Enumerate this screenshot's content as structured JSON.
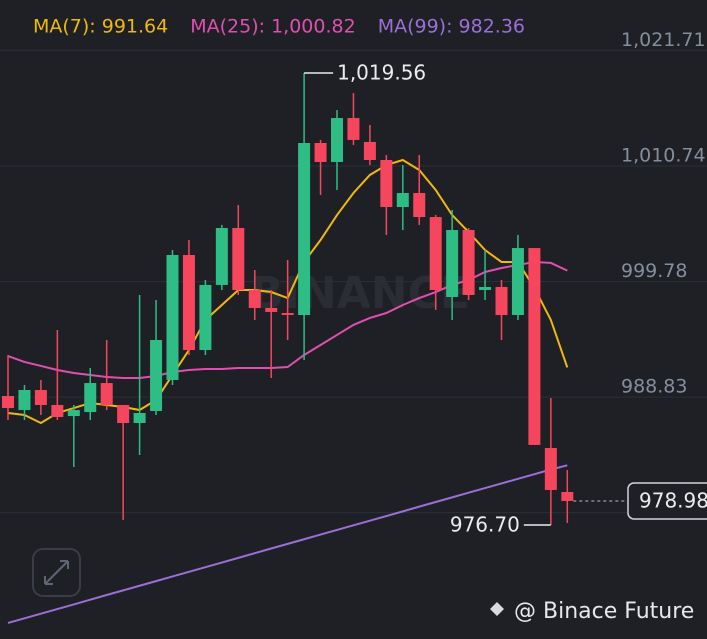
{
  "chart_data": {
    "type": "candlestick",
    "open": [
      988.93,
      987.6,
      989.5,
      988.08,
      987.03,
      987.41,
      990.16,
      988.08,
      986.37,
      987.51,
      990.45,
      1002.3,
      993.29,
      999.46,
      1004.86,
      998.98,
      997.28,
      996.8,
      996.61,
      1012.92,
      1011.12,
      1015.29,
      1013.02,
      1011.31,
      1006.85,
      1008.18,
      1005.9,
      998.32,
      1004.67,
      998.98,
      999.27,
      996.61,
      1002.96,
      984.0,
      979.83
    ],
    "high": [
      992.82,
      989.97,
      990.45,
      995.19,
      988.08,
      991.59,
      994.24,
      988.08,
      998.51,
      998.03,
      1002.77,
      1003.72,
      999.93,
      1005.15,
      1007.04,
      1000.88,
      998.98,
      1001.83,
      1019.56,
      1013.21,
      1016.05,
      1017.66,
      1014.63,
      1011.78,
      1010.83,
      1011.78,
      1006.1,
      1006.57,
      1004.86,
      1002.77,
      999.93,
      1004.2,
      1002.96,
      988.74,
      981.91
    ],
    "low": [
      986.66,
      986.66,
      987.13,
      986.66,
      982.2,
      986.66,
      987.6,
      977.17,
      983.34,
      987.13,
      989.97,
      992.82,
      992.82,
      998.98,
      998.51,
      996.14,
      990.64,
      994.24,
      992.34,
      1007.99,
      1008.46,
      1012.73,
      1010.83,
      1004.2,
      1004.67,
      1005.15,
      997.09,
      996.14,
      998.03,
      998.03,
      994.24,
      996.14,
      984.29,
      976.7,
      976.89
    ],
    "close": [
      987.79,
      989.5,
      988.08,
      986.94,
      987.6,
      990.16,
      988.08,
      986.37,
      987.32,
      994.24,
      1002.3,
      993.29,
      999.46,
      1004.86,
      998.98,
      997.28,
      996.9,
      996.61,
      1012.92,
      1011.12,
      1015.29,
      1013.21,
      1011.31,
      1006.85,
      1008.18,
      1005.9,
      998.98,
      1004.67,
      998.51,
      999.27,
      996.61,
      1002.96,
      984.29,
      980.02,
      978.98
    ],
    "up_color": "#2ebd85",
    "down_color": "#f6465d",
    "series": [
      {
        "label": "MA(7): 991.64",
        "color": "#f0b90b",
        "values": [
          987.32,
          987.13,
          986.37,
          987.32,
          987.79,
          988.27,
          988.08,
          987.89,
          987.6,
          988.55,
          990.92,
          993.29,
          996.14,
          997.56,
          998.98,
          998.98,
          998.79,
          998.22,
          1001.64,
          1003.72,
          1006.09,
          1008.18,
          1009.89,
          1010.83,
          1011.31,
          1010.36,
          1008.47,
          1006.09,
          1004.48,
          1002.77,
          1001.64,
          1001.64,
          999.17,
          996.14,
          991.64
        ]
      },
      {
        "label": "MA(25): 1,000.82",
        "color": "#e04fb0",
        "values": [
          992.72,
          992.16,
          991.78,
          991.4,
          991.11,
          990.92,
          990.73,
          990.64,
          990.64,
          990.83,
          991.21,
          991.4,
          991.49,
          991.49,
          991.59,
          991.59,
          991.59,
          991.68,
          992.82,
          993.77,
          994.72,
          995.67,
          996.33,
          996.8,
          997.56,
          998.22,
          998.79,
          999.46,
          999.93,
          1000.69,
          1001.07,
          1001.36,
          1001.64,
          1001.55,
          1000.82
        ]
      },
      {
        "label": "MA(99): 982.36",
        "color": "#9b6fd6",
        "values": [
          967.41,
          967.85,
          968.29,
          968.73,
          969.17,
          969.62,
          970.06,
          970.5,
          970.94,
          971.38,
          971.82,
          972.26,
          972.7,
          973.14,
          973.58,
          974.03,
          974.47,
          974.91,
          975.35,
          975.79,
          976.23,
          976.67,
          977.11,
          977.55,
          977.99,
          978.44,
          978.88,
          979.32,
          979.76,
          980.2,
          980.64,
          981.08,
          981.52,
          981.96,
          982.36
        ]
      }
    ],
    "ylim": [
      965.89,
      1026.48
    ],
    "yticks": [
      {
        "value": 1021.71,
        "label": "1,021.71"
      },
      {
        "value": 1010.74,
        "label": "1,010.74"
      },
      {
        "value": 999.78,
        "label": "999.78"
      },
      {
        "value": 988.83,
        "label": "988.83"
      },
      {
        "value": 977.87,
        "label": ""
      }
    ],
    "grid": true,
    "high_annotation": {
      "value": 1019.56,
      "label": "1,019.56"
    },
    "low_annotation": {
      "value": 976.7,
      "label": "976.70"
    },
    "last_price": {
      "value": 978.98,
      "label": "978.98"
    },
    "watermark": "BINANCE",
    "footer": "@ Binace Future"
  }
}
